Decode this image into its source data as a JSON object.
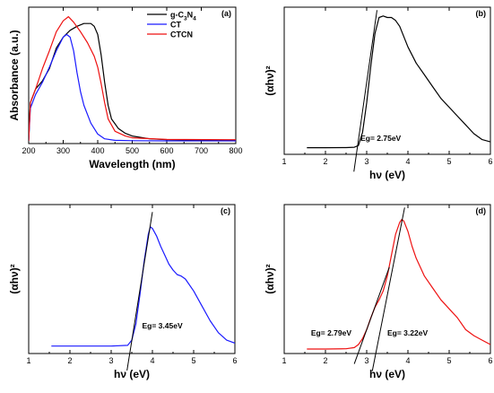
{
  "chart_data": [
    {
      "panel": "(a)",
      "type": "line",
      "xlabel": "Wavelength (nm)",
      "ylabel": "Absorbance (a.u.)",
      "xlim": [
        200,
        800
      ],
      "ylim": [
        0,
        1
      ],
      "xticks": [
        "200",
        "300",
        "400",
        "500",
        "600",
        "700",
        "800"
      ],
      "legend_position": "top-right",
      "series": [
        {
          "name": "g-C3N4",
          "color": "#000000",
          "points": [
            [
              200,
              0.02
            ],
            [
              205,
              0.3
            ],
            [
              220,
              0.4
            ],
            [
              240,
              0.46
            ],
            [
              260,
              0.55
            ],
            [
              280,
              0.7
            ],
            [
              300,
              0.78
            ],
            [
              320,
              0.83
            ],
            [
              340,
              0.86
            ],
            [
              360,
              0.88
            ],
            [
              380,
              0.88
            ],
            [
              390,
              0.86
            ],
            [
              400,
              0.8
            ],
            [
              410,
              0.65
            ],
            [
              420,
              0.45
            ],
            [
              430,
              0.28
            ],
            [
              440,
              0.18
            ],
            [
              460,
              0.11
            ],
            [
              480,
              0.075
            ],
            [
              500,
              0.055
            ],
            [
              550,
              0.035
            ],
            [
              600,
              0.028
            ],
            [
              700,
              0.025
            ],
            [
              800,
              0.024
            ]
          ]
        },
        {
          "name": "CT",
          "color": "#1a1aff",
          "points": [
            [
              200,
              0.02
            ],
            [
              205,
              0.26
            ],
            [
              220,
              0.36
            ],
            [
              240,
              0.45
            ],
            [
              260,
              0.56
            ],
            [
              280,
              0.68
            ],
            [
              300,
              0.78
            ],
            [
              310,
              0.8
            ],
            [
              320,
              0.78
            ],
            [
              330,
              0.68
            ],
            [
              340,
              0.52
            ],
            [
              350,
              0.38
            ],
            [
              360,
              0.28
            ],
            [
              380,
              0.15
            ],
            [
              400,
              0.07
            ],
            [
              420,
              0.035
            ],
            [
              450,
              0.024
            ],
            [
              500,
              0.021
            ],
            [
              600,
              0.02
            ],
            [
              800,
              0.02
            ]
          ]
        },
        {
          "name": "CTCN",
          "color": "#ee1111",
          "points": [
            [
              200,
              0.02
            ],
            [
              205,
              0.3
            ],
            [
              220,
              0.4
            ],
            [
              240,
              0.55
            ],
            [
              260,
              0.68
            ],
            [
              280,
              0.82
            ],
            [
              300,
              0.9
            ],
            [
              315,
              0.93
            ],
            [
              330,
              0.89
            ],
            [
              350,
              0.82
            ],
            [
              370,
              0.74
            ],
            [
              390,
              0.64
            ],
            [
              400,
              0.56
            ],
            [
              410,
              0.44
            ],
            [
              420,
              0.3
            ],
            [
              430,
              0.18
            ],
            [
              450,
              0.09
            ],
            [
              480,
              0.055
            ],
            [
              500,
              0.042
            ],
            [
              600,
              0.03
            ],
            [
              800,
              0.028
            ]
          ]
        }
      ],
      "legend": {
        "items": [
          {
            "name": "g-C3N4",
            "color": "#000000",
            "base": "g-C",
            "sub1": "3",
            "mid": "N",
            "sub2": "4"
          },
          {
            "name": "CT",
            "color": "#1a1aff",
            "label": "CT"
          },
          {
            "name": "CTCN",
            "color": "#ee1111",
            "label": "CTCN"
          }
        ]
      }
    },
    {
      "panel": "(b)",
      "type": "line",
      "xlabel": "hν (eV)",
      "ylabel": "(αhν)²",
      "xlim": [
        1,
        6
      ],
      "ylim": [
        0,
        1
      ],
      "xticks": [
        "1",
        "2",
        "3",
        "4",
        "5",
        "6"
      ],
      "series": [
        {
          "color": "#000000",
          "points": [
            [
              1.55,
              0.045
            ],
            [
              2.0,
              0.045
            ],
            [
              2.5,
              0.046
            ],
            [
              2.7,
              0.048
            ],
            [
              2.8,
              0.06
            ],
            [
              2.9,
              0.15
            ],
            [
              3.0,
              0.35
            ],
            [
              3.1,
              0.6
            ],
            [
              3.2,
              0.82
            ],
            [
              3.3,
              0.93
            ],
            [
              3.4,
              0.94
            ],
            [
              3.5,
              0.93
            ],
            [
              3.6,
              0.93
            ],
            [
              3.7,
              0.91
            ],
            [
              3.8,
              0.87
            ],
            [
              3.9,
              0.8
            ],
            [
              4.0,
              0.73
            ],
            [
              4.2,
              0.62
            ],
            [
              4.4,
              0.54
            ],
            [
              4.6,
              0.46
            ],
            [
              4.8,
              0.38
            ],
            [
              5.0,
              0.32
            ],
            [
              5.2,
              0.26
            ],
            [
              5.4,
              0.2
            ],
            [
              5.6,
              0.14
            ],
            [
              5.8,
              0.1
            ],
            [
              6.0,
              0.085
            ]
          ]
        }
      ],
      "fit_lines": [
        {
          "from": [
            2.75,
            0.0
          ],
          "to": [
            3.25,
            0.98
          ]
        }
      ],
      "annotations": [
        {
          "text": "Eg= 2.75eV",
          "x": 2.85,
          "y": 0.09
        }
      ]
    },
    {
      "panel": "(c)",
      "type": "line",
      "xlabel": "hν (eV)",
      "ylabel": "(αhν)²",
      "xlim": [
        1,
        6
      ],
      "ylim": [
        0,
        1
      ],
      "xticks": [
        "1",
        "2",
        "3",
        "4",
        "5",
        "6"
      ],
      "series": [
        {
          "color": "#1a1aff",
          "points": [
            [
              1.55,
              0.05
            ],
            [
              2.5,
              0.05
            ],
            [
              3.0,
              0.05
            ],
            [
              3.4,
              0.055
            ],
            [
              3.5,
              0.09
            ],
            [
              3.6,
              0.2
            ],
            [
              3.7,
              0.4
            ],
            [
              3.8,
              0.62
            ],
            [
              3.9,
              0.8
            ],
            [
              3.95,
              0.85
            ],
            [
              4.0,
              0.84
            ],
            [
              4.1,
              0.79
            ],
            [
              4.2,
              0.72
            ],
            [
              4.3,
              0.66
            ],
            [
              4.4,
              0.6
            ],
            [
              4.5,
              0.56
            ],
            [
              4.6,
              0.53
            ],
            [
              4.7,
              0.52
            ],
            [
              4.8,
              0.5
            ],
            [
              5.0,
              0.42
            ],
            [
              5.2,
              0.32
            ],
            [
              5.4,
              0.22
            ],
            [
              5.6,
              0.14
            ],
            [
              5.8,
              0.09
            ],
            [
              6.0,
              0.07
            ]
          ]
        }
      ],
      "fit_lines": [
        {
          "from": [
            3.45,
            0.0
          ],
          "to": [
            4.0,
            0.95
          ]
        }
      ],
      "annotations": [
        {
          "text": "Eg= 3.45eV",
          "x": 3.75,
          "y": 0.17
        }
      ]
    },
    {
      "panel": "(d)",
      "type": "line",
      "xlabel": "hν (eV)",
      "ylabel": "(αhν)²",
      "xlim": [
        1,
        6
      ],
      "ylim": [
        0,
        1
      ],
      "xticks": [
        "1",
        "2",
        "3",
        "4",
        "5",
        "6"
      ],
      "series": [
        {
          "color": "#ee1111",
          "points": [
            [
              1.55,
              0.03
            ],
            [
              2.0,
              0.03
            ],
            [
              2.5,
              0.032
            ],
            [
              2.7,
              0.04
            ],
            [
              2.8,
              0.06
            ],
            [
              2.9,
              0.1
            ],
            [
              3.0,
              0.16
            ],
            [
              3.1,
              0.24
            ],
            [
              3.2,
              0.31
            ],
            [
              3.3,
              0.36
            ],
            [
              3.4,
              0.42
            ],
            [
              3.5,
              0.52
            ],
            [
              3.6,
              0.66
            ],
            [
              3.7,
              0.8
            ],
            [
              3.8,
              0.88
            ],
            [
              3.85,
              0.9
            ],
            [
              3.9,
              0.89
            ],
            [
              4.0,
              0.82
            ],
            [
              4.1,
              0.72
            ],
            [
              4.2,
              0.64
            ],
            [
              4.3,
              0.58
            ],
            [
              4.4,
              0.52
            ],
            [
              4.6,
              0.44
            ],
            [
              4.8,
              0.36
            ],
            [
              5.0,
              0.3
            ],
            [
              5.2,
              0.24
            ],
            [
              5.4,
              0.16
            ],
            [
              5.6,
              0.12
            ],
            [
              5.8,
              0.09
            ],
            [
              6.0,
              0.06
            ]
          ]
        }
      ],
      "fit_lines": [
        {
          "from": [
            2.79,
            0.0
          ],
          "to": [
            3.55,
            0.58
          ]
        },
        {
          "from": [
            3.22,
            0.0
          ],
          "to": [
            3.92,
            0.98
          ]
        }
      ],
      "annotations": [
        {
          "text": "Eg= 2.79eV",
          "x": 1.65,
          "y": 0.12
        },
        {
          "text": "Eg= 3.22eV",
          "x": 3.5,
          "y": 0.12
        }
      ]
    }
  ]
}
